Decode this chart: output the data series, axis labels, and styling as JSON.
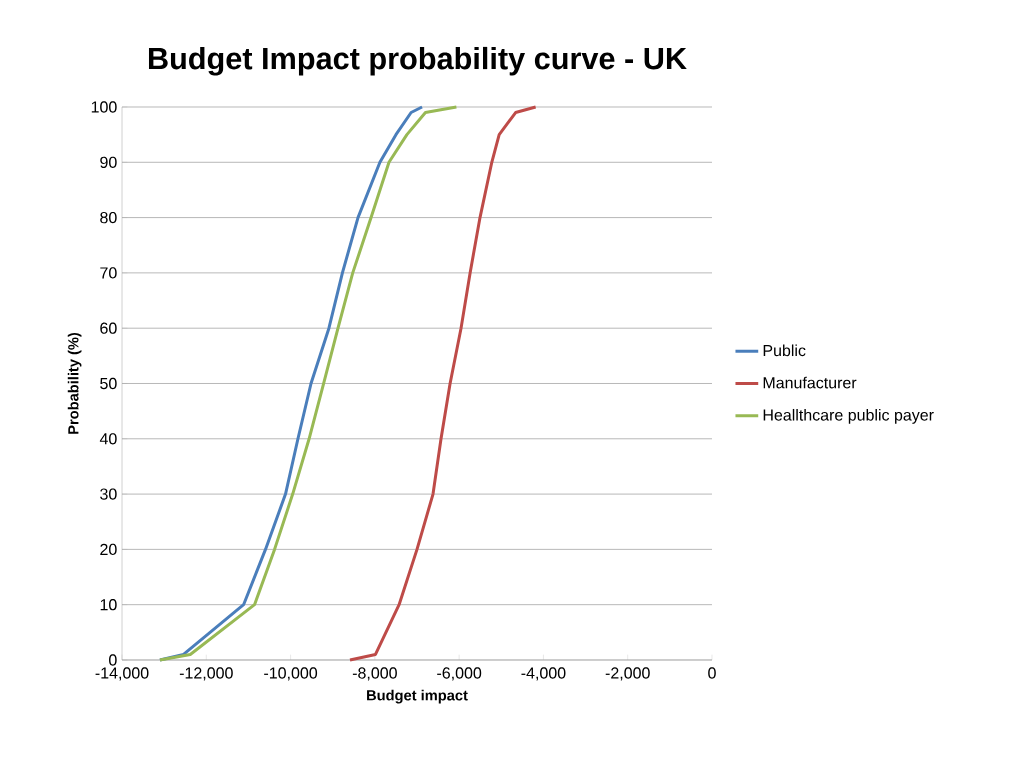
{
  "chart_data": {
    "type": "line",
    "title": "Budget Impact probability curve - UK",
    "xlabel": "Budget impact",
    "ylabel": "Probability (%)",
    "xlim": [
      -14000,
      0
    ],
    "xticks": [
      {
        "value": -14000,
        "label": "-14,000"
      },
      {
        "value": -12000,
        "label": "-12,000"
      },
      {
        "value": -10000,
        "label": "-10,000"
      },
      {
        "value": -8000,
        "label": "-8,000"
      },
      {
        "value": -6000,
        "label": "-6,000"
      },
      {
        "value": -4000,
        "label": "-4,000"
      },
      {
        "value": -2000,
        "label": "-2,000"
      },
      0
    ],
    "ylim": [
      0,
      100
    ],
    "yticks": [
      0,
      10,
      20,
      30,
      40,
      50,
      60,
      70,
      80,
      90,
      100
    ],
    "grid": "y",
    "legend": "right",
    "marker": "none",
    "line_style": "solid",
    "series": [
      {
        "name": "Public",
        "color": "#4a7ebb",
        "x": [
          -13100,
          -12540,
          -11115,
          -10595,
          -10120,
          -9825,
          -9515,
          -9090,
          -8770,
          -8400,
          -7880,
          -7500,
          -7140,
          -6880
        ],
        "values": [
          0,
          1,
          10,
          20,
          30,
          40,
          50,
          60,
          70,
          80,
          90,
          95,
          99,
          100
        ]
      },
      {
        "name": "Manufacturer",
        "color": "#be4b48",
        "x": [
          -8590,
          -7985,
          -7425,
          -7000,
          -6620,
          -6430,
          -6215,
          -5955,
          -5740,
          -5505,
          -5225,
          -5050,
          -4660,
          -4185
        ],
        "values": [
          0,
          1,
          10,
          20,
          30,
          40,
          50,
          60,
          70,
          80,
          90,
          95,
          99,
          100
        ]
      },
      {
        "name": "Heallthcare public payer",
        "color": "#98b954",
        "x": [
          -13100,
          -12380,
          -10855,
          -10380,
          -9950,
          -9560,
          -9215,
          -8875,
          -8525,
          -8090,
          -7665,
          -7240,
          -6800,
          -6065
        ],
        "values": [
          0,
          1,
          10,
          20,
          30,
          40,
          50,
          60,
          70,
          80,
          90,
          95,
          99,
          100
        ]
      }
    ]
  }
}
